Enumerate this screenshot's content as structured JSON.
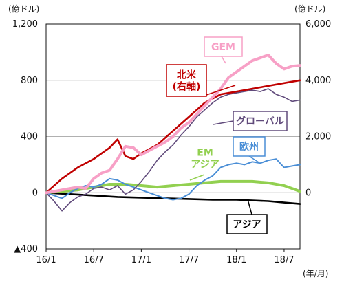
{
  "chart_data": {
    "type": "line",
    "x_ticks": [
      "16/1",
      "16/7",
      "17/1",
      "17/7",
      "18/1",
      "18/7"
    ],
    "x_range": [
      "2016-01",
      "2018-09"
    ],
    "x_unit": "(年/月)",
    "y_left": {
      "unit": "(億ドル)",
      "range": [
        -400,
        1200
      ],
      "tick_labels": [
        "▲400",
        "0",
        "400",
        "800",
        "1,200"
      ],
      "tick_values": [
        -400,
        0,
        400,
        800,
        1200
      ]
    },
    "y_right": {
      "unit": "(億ドル)",
      "range": [
        -2000,
        6000
      ],
      "tick_labels": [
        "0",
        "2,000",
        "4,000",
        "6,000"
      ],
      "tick_values": [
        0,
        2000,
        4000,
        6000
      ]
    },
    "grid": "horizontal",
    "series": [
      {
        "name": "GEM",
        "axis": "left",
        "color": "#f7a0c6",
        "points": [
          [
            "2016-01",
            0
          ],
          [
            "2016-03",
            20
          ],
          [
            "2016-05",
            40
          ],
          [
            "2016-06",
            30
          ],
          [
            "2016-07",
            100
          ],
          [
            "2016-08",
            140
          ],
          [
            "2016-09",
            160
          ],
          [
            "2016-10",
            240
          ],
          [
            "2016-11",
            330
          ],
          [
            "2016-12",
            320
          ],
          [
            "2017-01",
            270
          ],
          [
            "2017-02",
            300
          ],
          [
            "2017-03",
            330
          ],
          [
            "2017-04",
            360
          ],
          [
            "2017-05",
            400
          ],
          [
            "2017-06",
            460
          ],
          [
            "2017-07",
            500
          ],
          [
            "2017-08",
            560
          ],
          [
            "2017-09",
            620
          ],
          [
            "2017-10",
            680
          ],
          [
            "2017-11",
            740
          ],
          [
            "2017-12",
            820
          ],
          [
            "2018-01",
            860
          ],
          [
            "2018-02",
            900
          ],
          [
            "2018-03",
            940
          ],
          [
            "2018-04",
            960
          ],
          [
            "2018-05",
            980
          ],
          [
            "2018-06",
            920
          ],
          [
            "2018-07",
            880
          ],
          [
            "2018-08",
            900
          ],
          [
            "2018-09",
            905
          ]
        ]
      },
      {
        "name": "北米 (右軸)",
        "axis": "right",
        "color": "#c00000",
        "points": [
          [
            "2016-01",
            0
          ],
          [
            "2016-03",
            500
          ],
          [
            "2016-05",
            900
          ],
          [
            "2016-07",
            1200
          ],
          [
            "2016-09",
            1600
          ],
          [
            "2016-10",
            1900
          ],
          [
            "2016-11",
            1300
          ],
          [
            "2016-12",
            1200
          ],
          [
            "2017-01",
            1400
          ],
          [
            "2017-03",
            1700
          ],
          [
            "2017-05",
            2200
          ],
          [
            "2017-07",
            2700
          ],
          [
            "2017-09",
            3200
          ],
          [
            "2017-11",
            3500
          ],
          [
            "2018-01",
            3600
          ],
          [
            "2018-03",
            3700
          ],
          [
            "2018-05",
            3800
          ],
          [
            "2018-07",
            3900
          ],
          [
            "2018-09",
            4000
          ]
        ]
      },
      {
        "name": "グローバル",
        "axis": "left",
        "color": "#604a7b",
        "points": [
          [
            "2016-01",
            0
          ],
          [
            "2016-02",
            -60
          ],
          [
            "2016-03",
            -130
          ],
          [
            "2016-04",
            -70
          ],
          [
            "2016-05",
            -30
          ],
          [
            "2016-06",
            -10
          ],
          [
            "2016-07",
            30
          ],
          [
            "2016-08",
            40
          ],
          [
            "2016-09",
            20
          ],
          [
            "2016-10",
            50
          ],
          [
            "2016-11",
            -10
          ],
          [
            "2016-12",
            20
          ],
          [
            "2017-01",
            80
          ],
          [
            "2017-02",
            150
          ],
          [
            "2017-03",
            230
          ],
          [
            "2017-04",
            290
          ],
          [
            "2017-05",
            340
          ],
          [
            "2017-06",
            410
          ],
          [
            "2017-07",
            470
          ],
          [
            "2017-08",
            540
          ],
          [
            "2017-09",
            590
          ],
          [
            "2017-10",
            640
          ],
          [
            "2017-11",
            680
          ],
          [
            "2017-12",
            700
          ],
          [
            "2018-01",
            710
          ],
          [
            "2018-02",
            720
          ],
          [
            "2018-03",
            730
          ],
          [
            "2018-04",
            720
          ],
          [
            "2018-05",
            740
          ],
          [
            "2018-06",
            700
          ],
          [
            "2018-07",
            680
          ],
          [
            "2018-08",
            650
          ],
          [
            "2018-09",
            660
          ]
        ]
      },
      {
        "name": "欧州",
        "axis": "left",
        "color": "#4a8ed6",
        "points": [
          [
            "2016-01",
            0
          ],
          [
            "2016-02",
            -20
          ],
          [
            "2016-03",
            -40
          ],
          [
            "2016-04",
            0
          ],
          [
            "2016-05",
            30
          ],
          [
            "2016-06",
            50
          ],
          [
            "2016-07",
            40
          ],
          [
            "2016-08",
            60
          ],
          [
            "2016-09",
            100
          ],
          [
            "2016-10",
            90
          ],
          [
            "2016-11",
            60
          ],
          [
            "2016-12",
            40
          ],
          [
            "2017-01",
            20
          ],
          [
            "2017-02",
            0
          ],
          [
            "2017-03",
            -20
          ],
          [
            "2017-04",
            -40
          ],
          [
            "2017-05",
            -50
          ],
          [
            "2017-06",
            -40
          ],
          [
            "2017-07",
            -10
          ],
          [
            "2017-08",
            50
          ],
          [
            "2017-09",
            90
          ],
          [
            "2017-10",
            120
          ],
          [
            "2017-11",
            180
          ],
          [
            "2017-12",
            200
          ],
          [
            "2018-01",
            210
          ],
          [
            "2018-02",
            200
          ],
          [
            "2018-03",
            220
          ],
          [
            "2018-04",
            210
          ],
          [
            "2018-05",
            230
          ],
          [
            "2018-06",
            240
          ],
          [
            "2018-07",
            180
          ],
          [
            "2018-08",
            190
          ],
          [
            "2018-09",
            200
          ]
        ]
      },
      {
        "name": "EM アジア",
        "axis": "left",
        "color": "#92d050",
        "points": [
          [
            "2016-01",
            0
          ],
          [
            "2016-03",
            10
          ],
          [
            "2016-05",
            20
          ],
          [
            "2016-07",
            40
          ],
          [
            "2016-09",
            60
          ],
          [
            "2016-11",
            60
          ],
          [
            "2017-01",
            50
          ],
          [
            "2017-03",
            40
          ],
          [
            "2017-05",
            50
          ],
          [
            "2017-07",
            60
          ],
          [
            "2017-09",
            70
          ],
          [
            "2017-11",
            80
          ],
          [
            "2018-01",
            80
          ],
          [
            "2018-03",
            80
          ],
          [
            "2018-05",
            70
          ],
          [
            "2018-07",
            50
          ],
          [
            "2018-08",
            30
          ],
          [
            "2018-09",
            10
          ]
        ]
      },
      {
        "name": "アジア",
        "axis": "left",
        "color": "#000000",
        "points": [
          [
            "2016-01",
            0
          ],
          [
            "2016-04",
            -10
          ],
          [
            "2016-07",
            -20
          ],
          [
            "2016-10",
            -30
          ],
          [
            "2017-01",
            -35
          ],
          [
            "2017-04",
            -40
          ],
          [
            "2017-07",
            -45
          ],
          [
            "2017-10",
            -50
          ],
          [
            "2018-01",
            -50
          ],
          [
            "2018-03",
            -55
          ],
          [
            "2018-05",
            -60
          ],
          [
            "2018-07",
            -70
          ],
          [
            "2018-09",
            -80
          ]
        ]
      }
    ],
    "annotations": [
      {
        "text": "GEM",
        "series": "GEM",
        "style": "box"
      },
      {
        "text": "北米\n(右軸)",
        "series": "北米 (右軸)",
        "style": "box"
      },
      {
        "text": "グローバル",
        "series": "グローバル",
        "style": "box"
      },
      {
        "text": "欧州",
        "series": "欧州",
        "style": "box"
      },
      {
        "text": "EM\nアジア",
        "series": "EM アジア",
        "style": "plain"
      },
      {
        "text": "アジア",
        "series": "アジア",
        "style": "box"
      }
    ]
  }
}
